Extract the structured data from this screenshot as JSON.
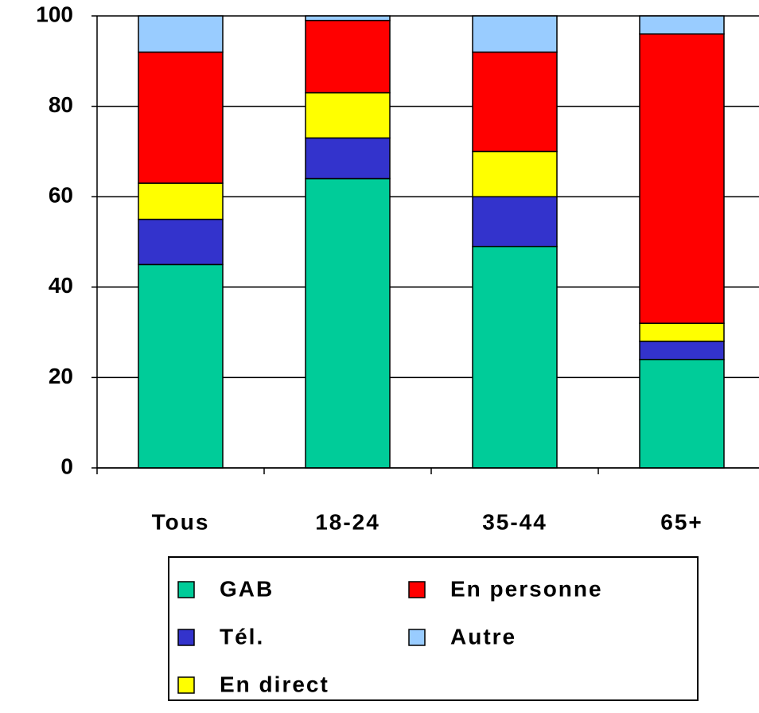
{
  "chart_data": {
    "type": "stacked_bar",
    "categories": [
      "Tous",
      "18-24",
      "35-44",
      "65+"
    ],
    "series": [
      {
        "name": "GAB",
        "color": "#00cc99",
        "values": [
          45,
          64,
          49,
          24
        ]
      },
      {
        "name": "Tél.",
        "color": "#3333cc",
        "values": [
          10,
          9,
          11,
          4
        ]
      },
      {
        "name": "En direct",
        "color": "#ffff00",
        "values": [
          8,
          10,
          10,
          4
        ]
      },
      {
        "name": "En personne",
        "color": "#ff0000",
        "values": [
          29,
          16,
          22,
          64
        ]
      },
      {
        "name": "Autre",
        "color": "#99ccff",
        "values": [
          8,
          1,
          8,
          4
        ]
      }
    ],
    "ylim": [
      0,
      100
    ],
    "yticks": [
      0,
      20,
      40,
      60,
      80,
      100
    ],
    "grid": true,
    "legend": "bottom"
  }
}
